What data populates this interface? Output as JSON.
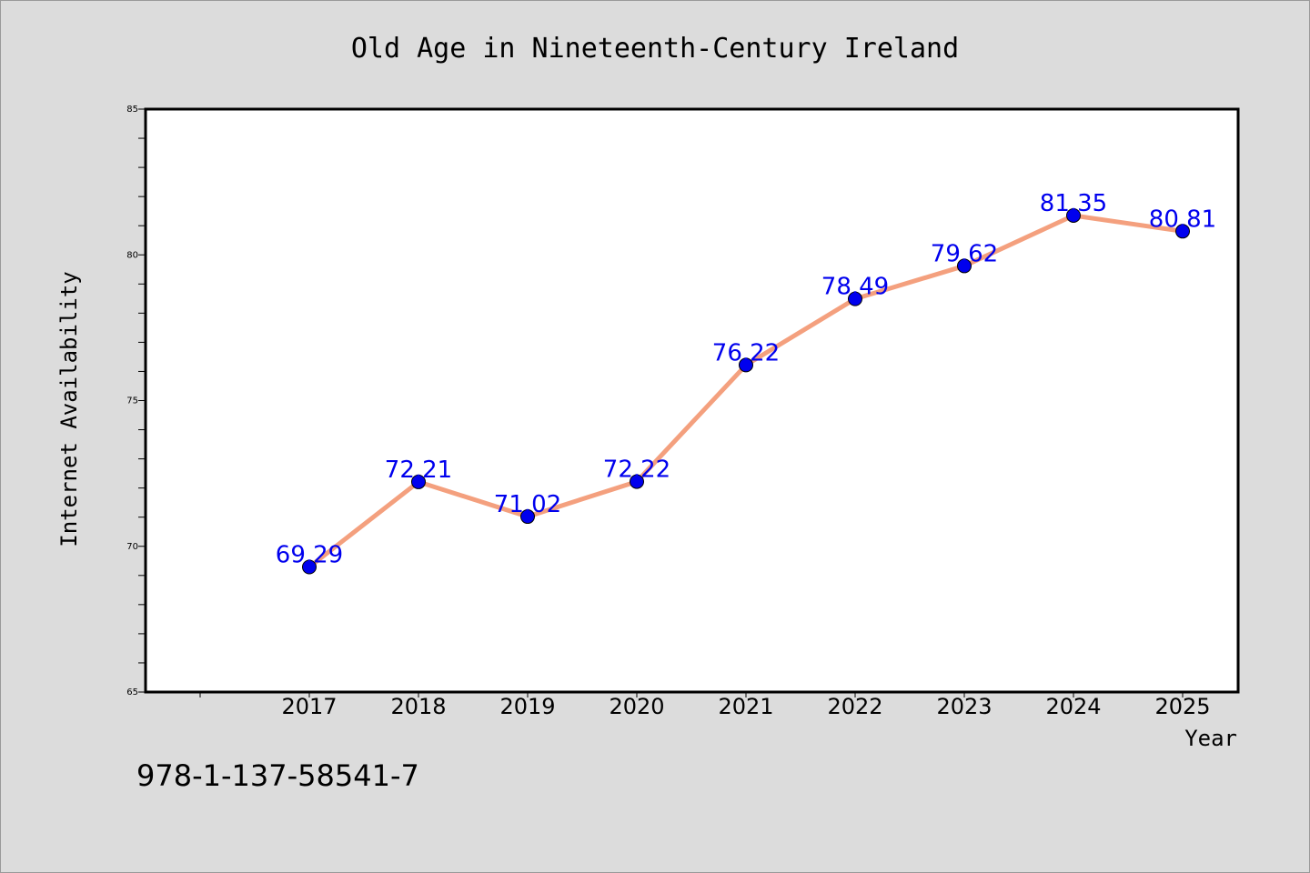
{
  "chart_data": {
    "type": "line",
    "title": "Old Age in Nineteenth-Century Ireland",
    "xlabel": "Year",
    "ylabel": "Internet Availability",
    "x": [
      "2017",
      "2018",
      "2019",
      "2020",
      "2021",
      "2022",
      "2023",
      "2024",
      "2025"
    ],
    "series": [
      {
        "values": [
          69.29,
          72.21,
          71.02,
          72.22,
          76.22,
          78.49,
          79.62,
          81.35,
          80.81
        ],
        "data_labels": [
          "69.29",
          "72.21",
          "71.02",
          "72.22",
          "76.22",
          "78.49",
          "79.62",
          "81.35",
          "80.81"
        ],
        "line_color": "#f4a07e",
        "marker_color": "#0000ee"
      }
    ],
    "ylim": [
      65,
      85
    ],
    "yticks": [
      "65",
      "70",
      "75",
      "80",
      "85"
    ],
    "grid": false,
    "legend": "none"
  },
  "footer": {
    "isbn": "978-1-137-58541-7"
  },
  "colors": {
    "background": "#dcdcdc",
    "plot_background": "#ffffff",
    "label_color": "#0000ee"
  }
}
